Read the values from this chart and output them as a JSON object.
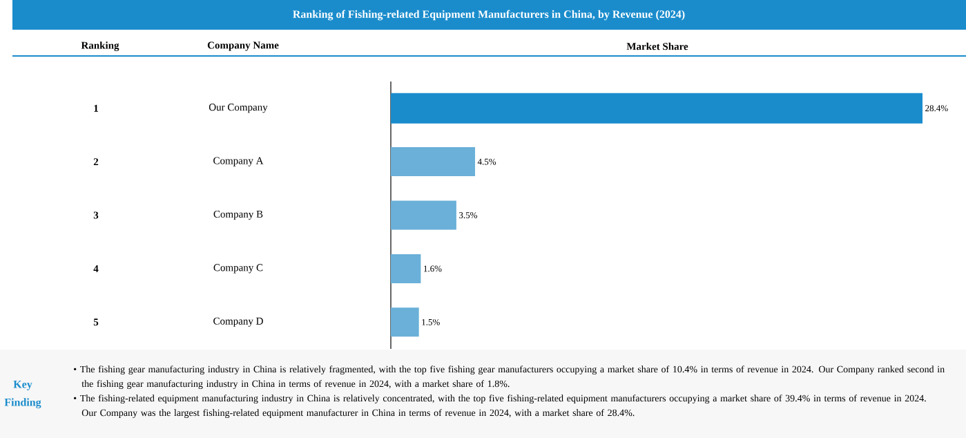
{
  "chart_data": {
    "type": "bar",
    "orientation": "horizontal",
    "title": "Ranking of Fishing-related Equipment Manufacturers in China, by Revenue (2024)",
    "categories": [
      "Our Company",
      "Company A",
      "Company B",
      "Company C",
      "Company D"
    ],
    "values": [
      28.4,
      4.5,
      3.5,
      1.6,
      1.5
    ],
    "colors": [
      "#1a8ccc",
      "#6ab0d8",
      "#6ab0d8",
      "#6ab0d8",
      "#6ab0d8"
    ],
    "value_labels": [
      "28.4%",
      "4.5%",
      "3.5%",
      "1.6%",
      "1.5%"
    ],
    "annotations": [
      "Ranking",
      "Company Name",
      "Market Share",
      "1",
      "2",
      "3",
      "4",
      "5",
      "Key Finding",
      "• The fishing gear manufacturing industry in China is relatively fragmented, with the top five fishing gear manufacturers occupying a market share of 10.4% in terms of revenue in 2024. Our Company ranked second in the fishing gear manufacturing industry in China in terms of revenue in 2024, with a market share of 1.8%.",
      "• The fishing-related equipment manufacturing industry in China is relatively concentrated, with the top five fishing-related equipment manufacturers occupying a market share of 39.4% in terms of revenue in 2024. Our Company was the largest fishing-related equipment manufacturer in China in terms of revenue in 2024, with a market share of 28.4%."
    ]
  }
}
